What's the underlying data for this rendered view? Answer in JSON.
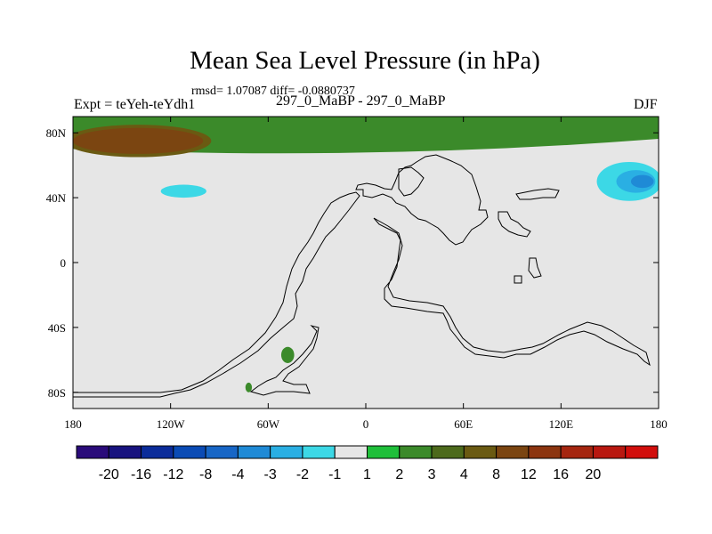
{
  "title": "Mean Sea Level Pressure (in hPa)",
  "stats": "rmsd= 1.07087 diff= -0.0880737",
  "left_label": "Expt = teYeh-teYdh1",
  "center_label": "297_0_MaBP - 297_0_MaBP",
  "right_label": "DJF",
  "chart_data": {
    "type": "heatmap",
    "title": "Mean Sea Level Pressure (in hPa)",
    "units": "hPa",
    "xlim": [
      -180,
      180
    ],
    "ylim": [
      -90,
      90
    ],
    "x_ticks": [
      {
        "value": -180,
        "label": "180"
      },
      {
        "value": -120,
        "label": "120W"
      },
      {
        "value": -60,
        "label": "60W"
      },
      {
        "value": 0,
        "label": "0"
      },
      {
        "value": 60,
        "label": "60E"
      },
      {
        "value": 120,
        "label": "120E"
      },
      {
        "value": 180,
        "label": "180"
      }
    ],
    "y_ticks": [
      {
        "value": 80,
        "label": "80N"
      },
      {
        "value": 40,
        "label": "40N"
      },
      {
        "value": 0,
        "label": "0"
      },
      {
        "value": -40,
        "label": "40S"
      },
      {
        "value": -80,
        "label": "80S"
      }
    ],
    "colorbar": {
      "colors": [
        "#2a0b7a",
        "#18137f",
        "#0b2c9a",
        "#0a4bb5",
        "#1766c6",
        "#1f8ad6",
        "#2aafe3",
        "#3cd8e6",
        "#e6e6e6",
        "#1fbf3a",
        "#3b8a2a",
        "#4d6a1c",
        "#6a5a12",
        "#7b4511",
        "#8c3510",
        "#a52610",
        "#b81810",
        "#d10e0c"
      ],
      "labels": [
        "-20",
        "-16",
        "-12",
        "-8",
        "-4",
        "-3",
        "-2",
        "-1",
        "1",
        "2",
        "3",
        "4",
        "8",
        "12",
        "16",
        "20"
      ]
    },
    "regions": [
      {
        "level": "2",
        "shape": "band",
        "lon": [
          -180,
          180
        ],
        "lat": [
          65,
          90
        ],
        "note": "positive anomaly band over high northern latitudes"
      },
      {
        "level": "4",
        "shape": "ellipse",
        "center": [
          -140,
          75
        ],
        "radius": [
          45,
          10
        ]
      },
      {
        "level": "8",
        "shape": "ellipse",
        "center": [
          -140,
          75
        ],
        "radius": [
          40,
          8
        ]
      },
      {
        "level": "-1",
        "shape": "band",
        "lon": [
          -180,
          30
        ],
        "lat": [
          33,
          52
        ],
        "note": "negative anomaly band across mid latitudes"
      },
      {
        "level": "-2",
        "shape": "ellipse",
        "center": [
          -112,
          44
        ],
        "radius": [
          14,
          4
        ]
      },
      {
        "level": "-1",
        "shape": "ellipse",
        "center": [
          150,
          50
        ],
        "radius": [
          30,
          22
        ]
      },
      {
        "level": "-2",
        "shape": "ellipse",
        "center": [
          162,
          50
        ],
        "radius": [
          20,
          12
        ]
      },
      {
        "level": "-3",
        "shape": "ellipse",
        "center": [
          166,
          50
        ],
        "radius": [
          12,
          7
        ]
      },
      {
        "level": "-4",
        "shape": "ellipse",
        "center": [
          170,
          50
        ],
        "radius": [
          7,
          4
        ]
      },
      {
        "level": "2",
        "shape": "patch",
        "center": [
          -48,
          -57
        ],
        "radius": [
          4,
          5
        ]
      },
      {
        "level": "2",
        "shape": "patch",
        "center": [
          -72,
          -77
        ],
        "radius": [
          2,
          3
        ]
      },
      {
        "level": "-1",
        "shape": "patch",
        "center": [
          172,
          -70
        ],
        "radius": [
          4,
          4
        ]
      }
    ]
  }
}
